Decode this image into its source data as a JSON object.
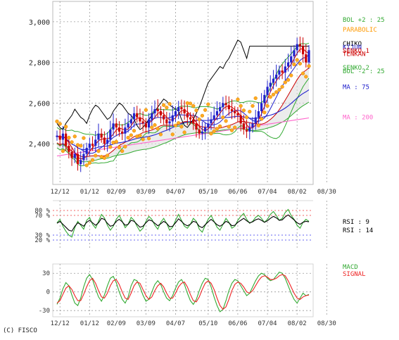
{
  "credit": "(C) FISCO",
  "chart_data": [
    {
      "panel": "price",
      "type": "candlestick",
      "ylim": [
        2200,
        3100
      ],
      "y_ticks": [
        {
          "value": 2400,
          "label": "2,400"
        },
        {
          "value": 2600,
          "label": "2,600"
        },
        {
          "value": 2800,
          "label": "2,800"
        },
        {
          "value": 3000,
          "label": "3,000"
        }
      ],
      "x_ticks": [
        "12/12",
        "01/12",
        "02/09",
        "03/09",
        "04/07",
        "05/10",
        "06/06",
        "07/04",
        "08/02",
        "08/30"
      ],
      "x_tick_index": [
        1,
        11,
        20,
        30,
        40,
        51,
        61,
        71,
        81,
        91
      ],
      "num_bars": 86,
      "grid": true,
      "legend_placement": "right",
      "legend": [
        {
          "label": "BOL +2 : 25",
          "color": "#33aa33",
          "value": 3010
        },
        {
          "label": "PARABOLIC",
          "color": "#ff9900",
          "value": 2962
        },
        {
          "label": "CHIKO",
          "color": "#000000",
          "value": 2893
        },
        {
          "label": "KIJUN",
          "color": "#2222cc",
          "value": 2875
        },
        {
          "label": "SENKO 1",
          "color": "#cc0000",
          "value": 2858
        },
        {
          "label": "TENKAN",
          "color": "#cc0000",
          "value": 2842
        },
        {
          "label": "SENKO 2",
          "color": "#33aa33",
          "value": 2775
        },
        {
          "label": "BOL -2 : 25",
          "color": "#33aa33",
          "value": 2757
        },
        {
          "label": "MA : 75",
          "color": "#2222cc",
          "value": 2680
        },
        {
          "label": "MA : 200",
          "color": "#ff66cc",
          "value": 2530
        }
      ],
      "close_series": [
        2440,
        2420,
        2450,
        2390,
        2360,
        2330,
        2350,
        2300,
        2320,
        2350,
        2380,
        2400,
        2390,
        2420,
        2450,
        2430,
        2400,
        2420,
        2470,
        2500,
        2480,
        2460,
        2450,
        2480,
        2500,
        2520,
        2550,
        2530,
        2510,
        2500,
        2480,
        2520,
        2550,
        2570,
        2560,
        2540,
        2520,
        2500,
        2510,
        2540,
        2560,
        2580,
        2570,
        2550,
        2530,
        2520,
        2500,
        2470,
        2450,
        2460,
        2480,
        2500,
        2520,
        2540,
        2560,
        2580,
        2600,
        2590,
        2570,
        2560,
        2550,
        2540,
        2500,
        2470,
        2460,
        2480,
        2500,
        2530,
        2560,
        2600,
        2640,
        2680,
        2700,
        2720,
        2740,
        2760,
        2750,
        2780,
        2800,
        2830,
        2860,
        2890,
        2880,
        2840,
        2800,
        2860
      ]
    },
    {
      "panel": "rsi",
      "type": "line",
      "ylim": [
        0,
        100
      ],
      "y_ticks": [
        {
          "value": 80,
          "label": "80 %",
          "color": "#ee3333"
        },
        {
          "value": 70,
          "label": "70 %",
          "color": "#ee3333"
        },
        {
          "value": 30,
          "label": "30 %",
          "color": "#3333ee"
        },
        {
          "value": 20,
          "label": "20 %",
          "color": "#3333ee"
        }
      ],
      "series": [
        {
          "name": "RSI : 9",
          "color": "#33aa33",
          "values": [
            55,
            62,
            48,
            38,
            30,
            26,
            45,
            58,
            50,
            42,
            60,
            66,
            52,
            44,
            58,
            72,
            65,
            50,
            40,
            48,
            62,
            70,
            58,
            45,
            52,
            66,
            60,
            48,
            38,
            44,
            58,
            68,
            62,
            50,
            42,
            56,
            64,
            54,
            40,
            46,
            60,
            72,
            60,
            48,
            44,
            52,
            64,
            58,
            42,
            36,
            50,
            62,
            70,
            58,
            46,
            40,
            52,
            64,
            56,
            44,
            48,
            60,
            68,
            74,
            62,
            54,
            58,
            66,
            70,
            64,
            56,
            62,
            72,
            78,
            70,
            60,
            64,
            76,
            82,
            70,
            62,
            50,
            44,
            56,
            62,
            58
          ]
        },
        {
          "name": "RSI : 14",
          "color": "#000000",
          "values": [
            54,
            58,
            52,
            46,
            40,
            38,
            48,
            55,
            52,
            48,
            56,
            60,
            55,
            50,
            55,
            64,
            62,
            54,
            48,
            50,
            58,
            62,
            57,
            50,
            52,
            60,
            58,
            52,
            46,
            48,
            55,
            61,
            59,
            54,
            49,
            53,
            58,
            54,
            47,
            48,
            55,
            63,
            58,
            52,
            49,
            52,
            58,
            56,
            48,
            45,
            51,
            57,
            62,
            57,
            51,
            48,
            52,
            58,
            55,
            49,
            50,
            56,
            60,
            64,
            59,
            55,
            57,
            61,
            63,
            60,
            56,
            59,
            64,
            68,
            65,
            60,
            61,
            67,
            71,
            66,
            61,
            55,
            52,
            56,
            58,
            57
          ]
        }
      ]
    },
    {
      "panel": "macd",
      "type": "line",
      "ylim": [
        -40,
        45
      ],
      "y_ticks": [
        {
          "value": 30,
          "label": "30"
        },
        {
          "value": 0,
          "label": "0"
        },
        {
          "value": -30,
          "label": "-30"
        }
      ],
      "x_ticks": [
        "12/12",
        "01/12",
        "02/09",
        "03/09",
        "04/07",
        "05/10",
        "06/06",
        "07/04",
        "08/02",
        "08/30"
      ],
      "series": [
        {
          "name": "MACD",
          "color": "#33aa33",
          "values": [
            -20,
            -10,
            5,
            15,
            10,
            -5,
            -18,
            -22,
            -10,
            8,
            22,
            28,
            20,
            5,
            -8,
            -15,
            -5,
            10,
            22,
            25,
            15,
            0,
            -12,
            -18,
            -8,
            10,
            20,
            18,
            8,
            -5,
            -15,
            -12,
            0,
            12,
            18,
            12,
            0,
            -10,
            -14,
            -6,
            6,
            16,
            20,
            12,
            -2,
            -14,
            -20,
            -12,
            2,
            14,
            22,
            20,
            8,
            -8,
            -22,
            -32,
            -28,
            -14,
            2,
            14,
            20,
            18,
            10,
            2,
            -6,
            -2,
            8,
            18,
            26,
            30,
            28,
            22,
            18,
            20,
            26,
            32,
            30,
            22,
            10,
            -2,
            -12,
            -18,
            -10,
            -2,
            -6,
            -4
          ]
        },
        {
          "name": "SIGNAL",
          "color": "#ee2222",
          "values": [
            -18,
            -14,
            -4,
            6,
            10,
            4,
            -6,
            -14,
            -14,
            -4,
            8,
            18,
            22,
            14,
            2,
            -8,
            -10,
            -2,
            10,
            18,
            20,
            12,
            0,
            -10,
            -12,
            -2,
            10,
            16,
            14,
            4,
            -6,
            -12,
            -8,
            2,
            10,
            14,
            8,
            -2,
            -10,
            -10,
            -2,
            8,
            14,
            16,
            8,
            -4,
            -14,
            -16,
            -8,
            4,
            14,
            18,
            14,
            4,
            -10,
            -22,
            -28,
            -24,
            -12,
            2,
            12,
            16,
            14,
            8,
            0,
            -2,
            2,
            10,
            18,
            24,
            26,
            24,
            20,
            20,
            22,
            26,
            28,
            26,
            18,
            8,
            -2,
            -10,
            -12,
            -8,
            -6,
            -5
          ]
        }
      ]
    }
  ]
}
